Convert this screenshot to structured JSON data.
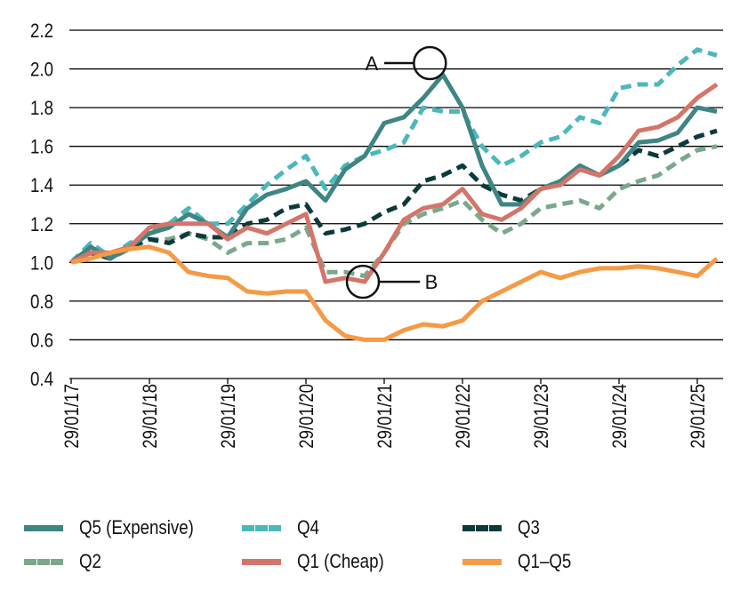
{
  "chart_data": {
    "type": "line",
    "title": "",
    "xlabel": "",
    "ylabel": "",
    "ylim": [
      0.4,
      2.2
    ],
    "yticks": [
      "0.4",
      "0.6",
      "0.8",
      "1.0",
      "1.2",
      "1.4",
      "1.6",
      "1.8",
      "2.0",
      "2.2"
    ],
    "xticks": [
      "29/01/17",
      "29/01/18",
      "29/01/19",
      "29/01/20",
      "29/01/21",
      "29/01/22",
      "29/01/23",
      "29/01/24",
      "29/01/25"
    ],
    "grid": "horizontal",
    "legend": "bottom",
    "x": [
      "2017-01",
      "2017-04",
      "2017-07",
      "2017-10",
      "2018-01",
      "2018-04",
      "2018-07",
      "2018-10",
      "2019-01",
      "2019-04",
      "2019-07",
      "2019-10",
      "2020-01",
      "2020-04",
      "2020-07",
      "2020-10",
      "2021-01",
      "2021-04",
      "2021-07",
      "2021-10",
      "2022-01",
      "2022-04",
      "2022-07",
      "2022-10",
      "2023-01",
      "2023-04",
      "2023-07",
      "2023-10",
      "2024-01",
      "2024-04",
      "2024-07",
      "2024-10",
      "2025-01",
      "2025-04"
    ],
    "series": [
      {
        "name": "Q5 (Expensive)",
        "color": "#3e8584",
        "style": "solid",
        "values": [
          1.0,
          1.08,
          1.02,
          1.08,
          1.15,
          1.18,
          1.25,
          1.2,
          1.13,
          1.28,
          1.35,
          1.38,
          1.42,
          1.32,
          1.48,
          1.55,
          1.72,
          1.75,
          1.85,
          1.97,
          1.8,
          1.5,
          1.3,
          1.3,
          1.38,
          1.42,
          1.5,
          1.45,
          1.5,
          1.62,
          1.63,
          1.67,
          1.8,
          1.78
        ]
      },
      {
        "name": "Q4",
        "color": "#4bb8bb",
        "style": "dashed",
        "values": [
          1.0,
          1.1,
          1.03,
          1.1,
          1.15,
          1.2,
          1.28,
          1.2,
          1.2,
          1.3,
          1.4,
          1.48,
          1.55,
          1.38,
          1.5,
          1.55,
          1.58,
          1.62,
          1.8,
          1.78,
          1.78,
          1.6,
          1.5,
          1.55,
          1.62,
          1.65,
          1.75,
          1.72,
          1.9,
          1.92,
          1.92,
          2.02,
          2.1,
          2.07
        ]
      },
      {
        "name": "Q3",
        "color": "#0c3a3a",
        "style": "dashed",
        "values": [
          1.0,
          1.05,
          1.02,
          1.08,
          1.12,
          1.1,
          1.15,
          1.13,
          1.13,
          1.2,
          1.22,
          1.28,
          1.3,
          1.15,
          1.17,
          1.2,
          1.26,
          1.3,
          1.42,
          1.45,
          1.5,
          1.4,
          1.35,
          1.32,
          1.38,
          1.42,
          1.48,
          1.45,
          1.5,
          1.58,
          1.55,
          1.6,
          1.65,
          1.68
        ]
      },
      {
        "name": "Q2",
        "color": "#7aa88c",
        "style": "dashed",
        "values": [
          1.0,
          1.05,
          1.02,
          1.07,
          1.12,
          1.12,
          1.15,
          1.12,
          1.05,
          1.1,
          1.1,
          1.12,
          1.18,
          0.95,
          0.95,
          0.93,
          1.05,
          1.2,
          1.25,
          1.28,
          1.32,
          1.22,
          1.15,
          1.2,
          1.28,
          1.3,
          1.32,
          1.28,
          1.38,
          1.42,
          1.45,
          1.52,
          1.58,
          1.6
        ]
      },
      {
        "name": "Q1 (Cheap)",
        "color": "#d4756a",
        "style": "solid",
        "values": [
          1.0,
          1.05,
          1.05,
          1.08,
          1.18,
          1.2,
          1.2,
          1.2,
          1.12,
          1.18,
          1.15,
          1.2,
          1.25,
          0.9,
          0.92,
          0.9,
          1.05,
          1.22,
          1.28,
          1.3,
          1.38,
          1.25,
          1.22,
          1.28,
          1.38,
          1.4,
          1.48,
          1.45,
          1.55,
          1.68,
          1.7,
          1.75,
          1.85,
          1.92
        ]
      },
      {
        "name": "Q1–Q5",
        "color": "#f59a45",
        "style": "solid",
        "values": [
          1.0,
          1.02,
          1.05,
          1.07,
          1.08,
          1.05,
          0.95,
          0.93,
          0.92,
          0.85,
          0.84,
          0.85,
          0.85,
          0.7,
          0.62,
          0.6,
          0.6,
          0.65,
          0.68,
          0.67,
          0.7,
          0.8,
          0.85,
          0.9,
          0.95,
          0.92,
          0.95,
          0.97,
          0.97,
          0.98,
          0.97,
          0.95,
          0.93,
          1.02
        ]
      }
    ],
    "annotations": [
      {
        "label": "A",
        "date": "2021-08",
        "value": 2.03
      },
      {
        "label": "B",
        "date": "2020-10",
        "value": 0.9
      }
    ]
  }
}
